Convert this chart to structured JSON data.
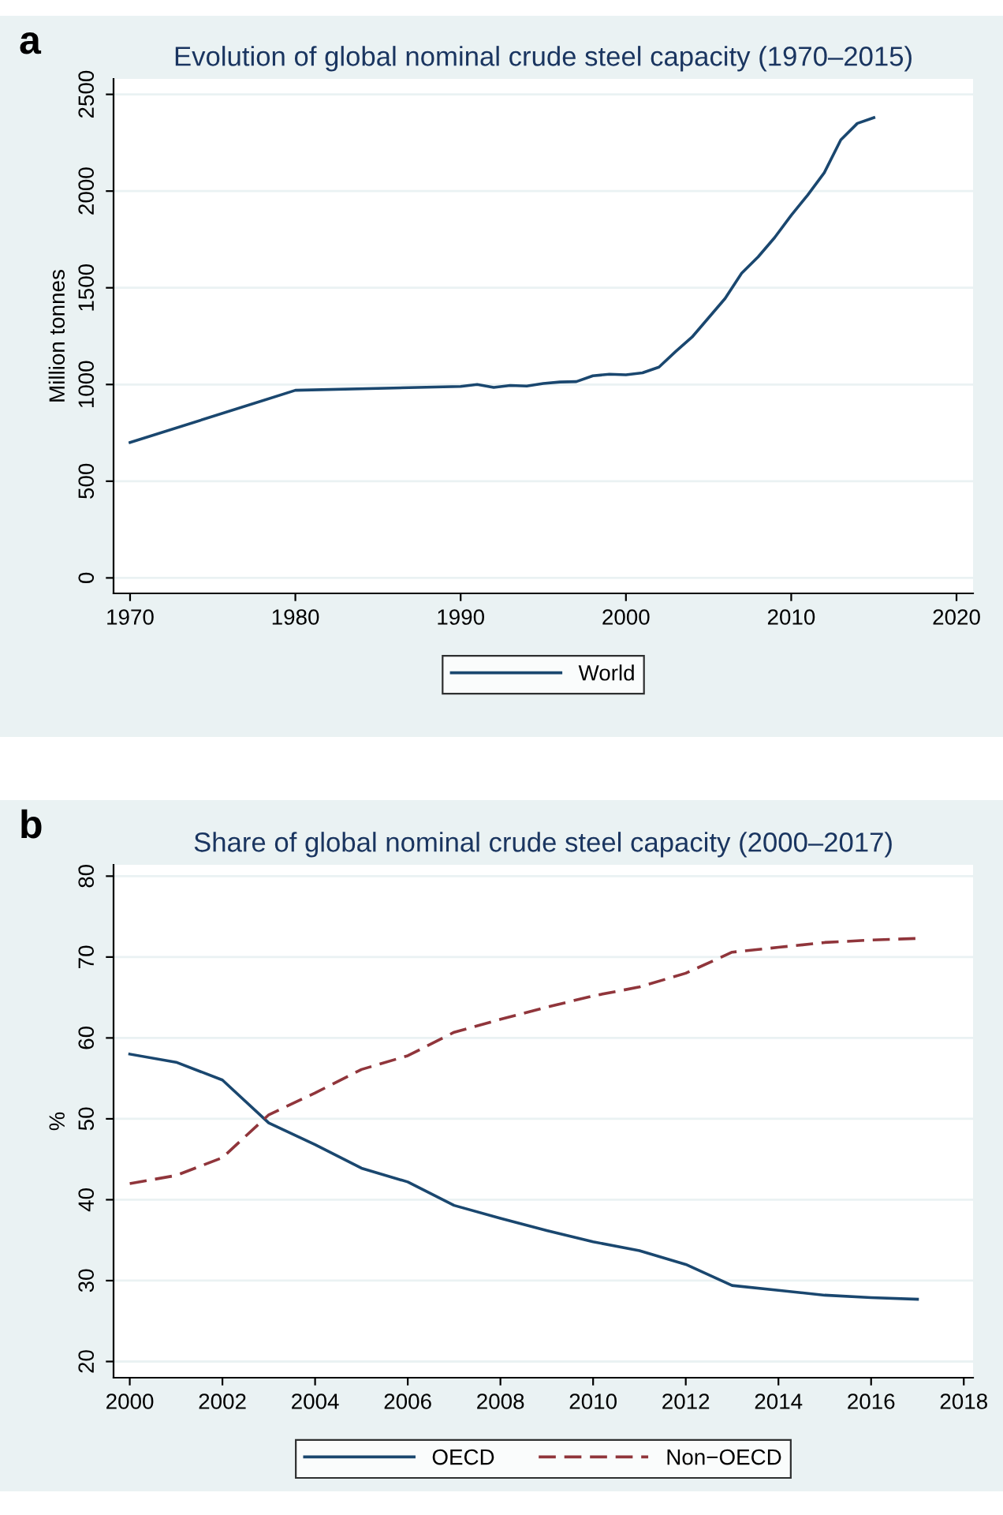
{
  "chart_data": [
    {
      "type": "line",
      "title": "Evolution of global nominal crude steel capacity (1970–2015)",
      "ylabel": "Million tonnes",
      "annotations": [
        "a"
      ],
      "x": [
        1970,
        1980,
        1990,
        1991,
        1992,
        1993,
        1994,
        1995,
        1996,
        1997,
        1998,
        1999,
        2000,
        2001,
        2002,
        2003,
        2004,
        2005,
        2006,
        2007,
        2008,
        2009,
        2010,
        2011,
        2012,
        2013,
        2014,
        2015
      ],
      "series": [
        {
          "name": "World",
          "color": "#1a476f",
          "values": [
            700,
            970,
            990,
            1000,
            985,
            995,
            992,
            1005,
            1013,
            1015,
            1045,
            1053,
            1050,
            1060,
            1090,
            1170,
            1245,
            1345,
            1445,
            1575,
            1660,
            1760,
            1875,
            1980,
            2095,
            2265,
            2350,
            2380
          ]
        }
      ],
      "xlim": [
        1969,
        2021
      ],
      "xticks": [
        1970,
        1980,
        1990,
        2000,
        2010,
        2020
      ],
      "ylim": [
        -80,
        2580
      ],
      "yticks": [
        0,
        500,
        1000,
        1500,
        2000,
        2500
      ],
      "grid": "y",
      "legend": "bottom",
      "line_style": "solid"
    },
    {
      "type": "line",
      "title": "Share of global nominal crude steel capacity (2000–2017)",
      "ylabel": "%",
      "annotations": [
        "b"
      ],
      "x": [
        2000,
        2001,
        2002,
        2003,
        2004,
        2005,
        2006,
        2007,
        2008,
        2009,
        2010,
        2011,
        2012,
        2013,
        2014,
        2015,
        2016,
        2017
      ],
      "series": [
        {
          "name": "OECD",
          "color": "#1a476f",
          "line_style": "solid",
          "values": [
            58,
            57,
            54.8,
            49.5,
            46.8,
            43.9,
            42.2,
            39.3,
            37.7,
            36.2,
            34.8,
            33.7,
            32,
            29.4,
            28.8,
            28.2,
            27.9,
            27.7
          ]
        },
        {
          "name": "Non−OECD",
          "color": "#90353b",
          "line_style": "dashed",
          "values": [
            42,
            43,
            45.2,
            50.5,
            53.2,
            56.1,
            57.8,
            60.7,
            62.3,
            63.8,
            65.2,
            66.3,
            68,
            70.6,
            71.2,
            71.8,
            72.1,
            72.3
          ]
        }
      ],
      "xlim": [
        1999.65,
        2018.2
      ],
      "xticks": [
        2000,
        2002,
        2004,
        2006,
        2008,
        2010,
        2012,
        2014,
        2016,
        2018
      ],
      "ylim": [
        18,
        81.4
      ],
      "yticks": [
        20,
        30,
        40,
        50,
        60,
        70,
        80
      ],
      "grid": "y",
      "legend": "bottom"
    }
  ]
}
